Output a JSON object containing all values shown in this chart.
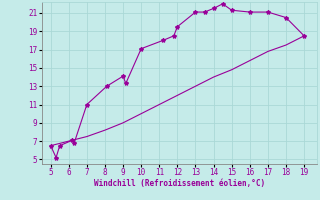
{
  "xlabel": "Windchill (Refroidissement éolien,°C)",
  "background_color": "#c5ebe9",
  "line_color": "#990099",
  "marker": "*",
  "xlim": [
    4.5,
    19.7
  ],
  "ylim": [
    4.5,
    22.2
  ],
  "xticks": [
    5,
    6,
    7,
    8,
    9,
    10,
    11,
    12,
    13,
    14,
    15,
    16,
    17,
    18,
    19
  ],
  "yticks": [
    5,
    7,
    9,
    11,
    13,
    15,
    17,
    19,
    21
  ],
  "curve1_x": [
    5.0,
    5.3,
    5.5,
    6.2,
    6.3,
    7.0,
    8.1,
    9.0,
    9.15,
    10.0,
    11.2,
    11.8,
    12.0,
    13.0,
    13.5,
    14.0,
    14.5,
    15.0,
    16.0,
    17.0,
    18.0,
    19.0
  ],
  "curve1_y": [
    6.5,
    5.2,
    6.5,
    7.1,
    6.8,
    11.0,
    13.0,
    14.1,
    13.3,
    17.1,
    18.0,
    18.5,
    19.5,
    21.1,
    21.1,
    21.5,
    22.0,
    21.3,
    21.1,
    21.1,
    20.5,
    18.5
  ],
  "curve2_x": [
    5.0,
    6.0,
    7.0,
    8.0,
    9.0,
    10.0,
    11.0,
    12.0,
    13.0,
    14.0,
    15.0,
    16.0,
    17.0,
    18.0,
    19.0
  ],
  "curve2_y": [
    6.5,
    7.0,
    7.5,
    8.2,
    9.0,
    10.0,
    11.0,
    12.0,
    13.0,
    14.0,
    14.8,
    15.8,
    16.8,
    17.5,
    18.5
  ],
  "grid_color": "#aad8d6",
  "tick_color": "#990099",
  "label_color": "#990099",
  "fontsize_ticks": 5.5,
  "fontsize_xlabel": 5.5,
  "marker_size": 3
}
